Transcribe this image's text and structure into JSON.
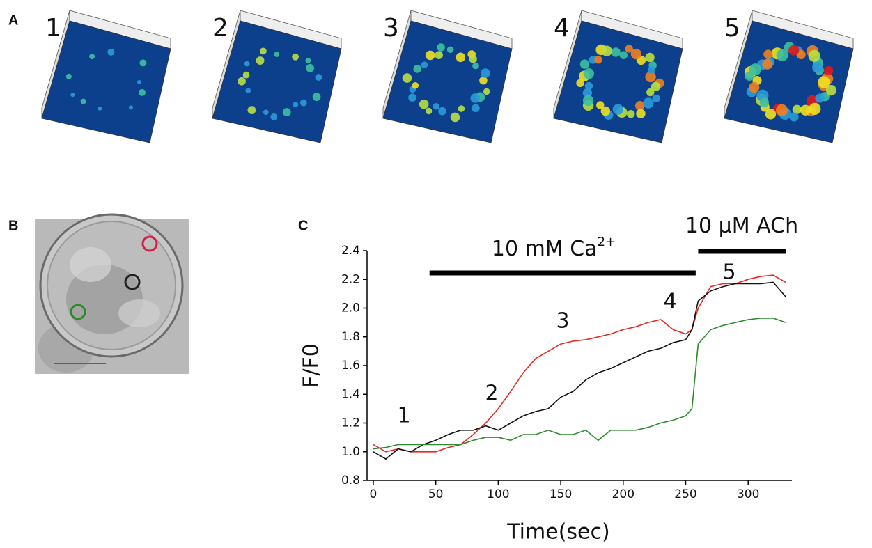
{
  "panels": {
    "A": "A",
    "B": "B",
    "C": "C"
  },
  "frames": [
    "1",
    "2",
    "3",
    "4",
    "5"
  ],
  "chart_data": {
    "type": "line",
    "xlabel": "Time(sec)",
    "ylabel": "F/F0",
    "x": [
      0,
      10,
      20,
      30,
      40,
      50,
      60,
      70,
      80,
      90,
      100,
      110,
      120,
      130,
      140,
      150,
      160,
      170,
      180,
      190,
      200,
      210,
      220,
      230,
      240,
      250,
      255,
      260,
      270,
      280,
      290,
      300,
      310,
      320,
      330
    ],
    "series": [
      {
        "color": "#e8281e",
        "values": [
          1.05,
          1.0,
          1.02,
          1.0,
          1.0,
          1.0,
          1.03,
          1.05,
          1.12,
          1.2,
          1.3,
          1.42,
          1.55,
          1.65,
          1.7,
          1.75,
          1.77,
          1.78,
          1.8,
          1.82,
          1.85,
          1.87,
          1.9,
          1.92,
          1.85,
          1.82,
          1.85,
          2.0,
          2.15,
          2.17,
          2.17,
          2.2,
          2.22,
          2.23,
          2.18
        ]
      },
      {
        "color": "#111111",
        "values": [
          1.0,
          0.95,
          1.02,
          1.0,
          1.05,
          1.08,
          1.12,
          1.15,
          1.15,
          1.18,
          1.15,
          1.2,
          1.25,
          1.28,
          1.3,
          1.38,
          1.42,
          1.5,
          1.55,
          1.58,
          1.62,
          1.66,
          1.7,
          1.72,
          1.76,
          1.78,
          1.85,
          2.05,
          2.12,
          2.15,
          2.17,
          2.17,
          2.17,
          2.18,
          2.08
        ]
      },
      {
        "color": "#2e8a2e",
        "values": [
          1.02,
          1.03,
          1.05,
          1.05,
          1.05,
          1.05,
          1.05,
          1.05,
          1.08,
          1.1,
          1.1,
          1.08,
          1.12,
          1.12,
          1.15,
          1.12,
          1.12,
          1.15,
          1.08,
          1.15,
          1.15,
          1.15,
          1.17,
          1.2,
          1.22,
          1.25,
          1.3,
          1.75,
          1.85,
          1.88,
          1.9,
          1.92,
          1.93,
          1.93,
          1.9
        ]
      }
    ],
    "xlim": [
      -5,
      335
    ],
    "xticks": [
      0,
      50,
      100,
      150,
      200,
      250,
      300
    ],
    "ylim": [
      0.8,
      2.4
    ],
    "yticks": [
      0.8,
      {
        "value": 1,
        "label": "1.0"
      },
      1.2,
      1.4,
      1.6,
      1.8,
      {
        "value": 2,
        "label": "2.0"
      },
      2.2,
      2.4
    ],
    "intervals": [
      {
        "label": "10 mM Ca",
        "sup": "2+",
        "x": [
          45,
          258
        ]
      },
      {
        "label": "10 μM ACh",
        "x": [
          260,
          330
        ]
      }
    ],
    "point_labels": [
      "1",
      "2",
      "3",
      "4",
      "5"
    ]
  }
}
